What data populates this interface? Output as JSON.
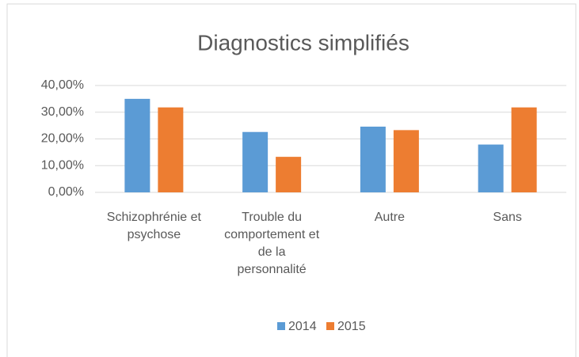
{
  "chart_data": {
    "type": "bar",
    "title": "Diagnostics simplifiés",
    "categories": [
      "Schizophrénie et psychose",
      "Trouble du comportement et de la personnalité",
      "Autre",
      "Sans"
    ],
    "series": [
      {
        "name": "2014",
        "color": "#5b9bd5",
        "values": [
          35.0,
          22.6,
          24.6,
          17.9
        ]
      },
      {
        "name": "2015",
        "color": "#ed7d31",
        "values": [
          31.8,
          13.3,
          23.3,
          31.8
        ]
      }
    ],
    "ylim": [
      0,
      40
    ],
    "yticks": [
      {
        "value": 0,
        "label": "0,00%"
      },
      {
        "value": 10,
        "label": "10,00%"
      },
      {
        "value": 20,
        "label": "20,00%"
      },
      {
        "value": 30,
        "label": "30,00%"
      },
      {
        "value": 40,
        "label": "40,00%"
      }
    ],
    "grid": true,
    "legend": "bottom"
  }
}
